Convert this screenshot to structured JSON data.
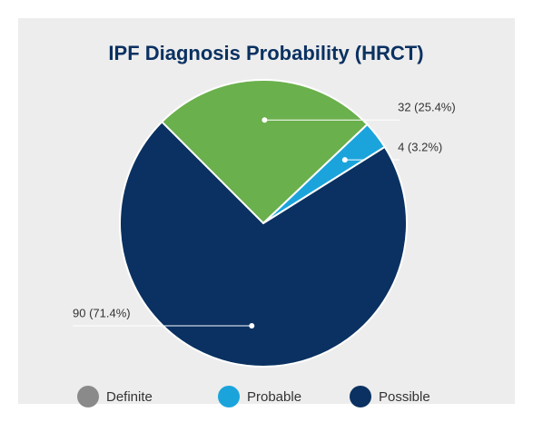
{
  "chart_data": {
    "type": "pie",
    "title": "IPF Diagnosis Probability (HRCT)",
    "categories": [
      "Definite",
      "Probable",
      "Possible"
    ],
    "values": [
      32,
      4,
      90
    ],
    "value_labels": [
      "32 (25.4%)",
      "4 (3.2%)",
      "90 (71.4%)"
    ],
    "colors": [
      "#6ab04c",
      "#1ba4dc",
      "#0a3161"
    ],
    "legend_colors": [
      "#8a8a8a",
      "#1ba4dc",
      "#0a3161"
    ],
    "legend": "bottom"
  }
}
